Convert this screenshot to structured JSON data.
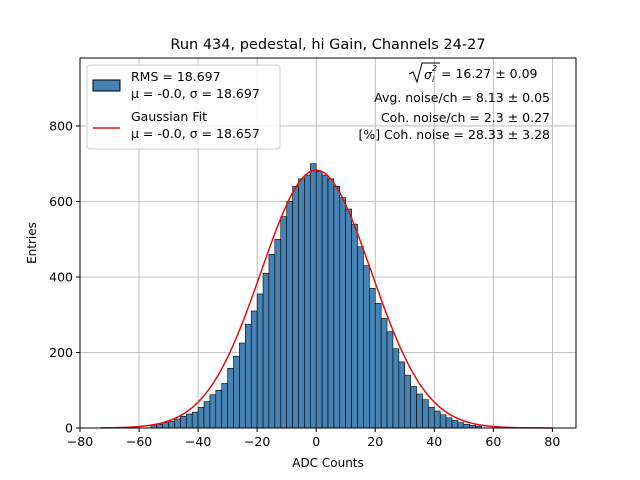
{
  "chart_data": {
    "type": "bar",
    "title": "Run 434, pedestal, hi Gain, Channels 24-27",
    "xlabel": "ADC Counts",
    "ylabel": "Entries",
    "xlim": [
      -80,
      88
    ],
    "ylim": [
      0,
      980
    ],
    "xticks": [
      -80,
      -60,
      -40,
      -20,
      0,
      20,
      40,
      60,
      80
    ],
    "yticks": [
      0,
      200,
      400,
      600,
      800
    ],
    "grid": true,
    "bin_width": 2,
    "histogram": {
      "name": "RMS = 18.697",
      "name_line2": "μ = -0.0, σ = 18.697",
      "color": "#4682b4",
      "edge_color": "#000000",
      "bin_centers": [
        -55,
        -53,
        -51,
        -49,
        -47,
        -45,
        -43,
        -41,
        -39,
        -37,
        -35,
        -33,
        -31,
        -29,
        -27,
        -25,
        -23,
        -21,
        -19,
        -17,
        -15,
        -13,
        -11,
        -9,
        -7,
        -5,
        -3,
        -1,
        1,
        3,
        5,
        7,
        9,
        11,
        13,
        15,
        17,
        19,
        21,
        23,
        25,
        27,
        29,
        31,
        33,
        35,
        37,
        39,
        41,
        43,
        45,
        47,
        49,
        51,
        53,
        55
      ],
      "counts": [
        8,
        10,
        14,
        18,
        24,
        31,
        37,
        42,
        55,
        70,
        88,
        100,
        118,
        158,
        190,
        225,
        275,
        310,
        355,
        410,
        460,
        500,
        560,
        600,
        640,
        660,
        670,
        700,
        680,
        670,
        660,
        640,
        610,
        580,
        540,
        480,
        430,
        370,
        330,
        290,
        255,
        210,
        175,
        140,
        110,
        90,
        75,
        55,
        45,
        35,
        27,
        20,
        14,
        10,
        7,
        5
      ]
    },
    "fit": {
      "name": "Gaussian Fit",
      "name_line2": "μ = -0.0, σ = 18.657",
      "color": "#e01010",
      "type": "gaussian",
      "mu": 0.0,
      "sigma": 18.657,
      "amplitude": 683,
      "x_range": [
        -73,
        80
      ]
    },
    "legend_position": "upper left",
    "annotations": {
      "sqrt_sigma_label": "σ",
      "sqrt_sigma_value": " = 16.27 ± 0.09",
      "avg_noise": "Avg. noise/ch = 8.13 ± 0.05",
      "coh_noise": "Coh. noise/ch = 2.3 ± 0.27",
      "coh_noise_pct": "[%] Coh. noise = 28.33 ± 3.28"
    }
  }
}
